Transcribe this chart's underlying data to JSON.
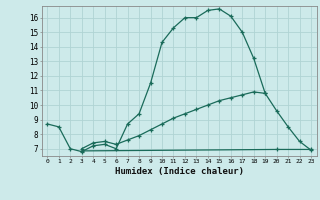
{
  "xlabel": "Humidex (Indice chaleur)",
  "background_color": "#cdeaea",
  "grid_color": "#b0d4d4",
  "line_color": "#1a6b5a",
  "xlim": [
    -0.5,
    23.5
  ],
  "ylim": [
    6.5,
    16.8
  ],
  "yticks": [
    7,
    8,
    9,
    10,
    11,
    12,
    13,
    14,
    15,
    16
  ],
  "xticks": [
    0,
    1,
    2,
    3,
    4,
    5,
    6,
    7,
    8,
    9,
    10,
    11,
    12,
    13,
    14,
    15,
    16,
    17,
    18,
    19,
    20,
    21,
    22,
    23
  ],
  "curve1_x": [
    0,
    1,
    2,
    3,
    4,
    5,
    6,
    7,
    8,
    9,
    10,
    11,
    12,
    13,
    14,
    15,
    16,
    17,
    18,
    19,
    20,
    21,
    22,
    23
  ],
  "curve1_y": [
    8.7,
    8.5,
    7.0,
    6.8,
    7.2,
    7.3,
    7.0,
    8.7,
    9.4,
    11.5,
    14.3,
    15.3,
    16.0,
    16.0,
    16.5,
    16.6,
    16.1,
    15.0,
    13.2,
    10.8,
    9.6,
    8.5,
    7.5,
    6.9
  ],
  "curve2_x": [
    3,
    4,
    5,
    6,
    7,
    8,
    9,
    10,
    11,
    12,
    13,
    14,
    15,
    16,
    17,
    18,
    19
  ],
  "curve2_y": [
    7.0,
    7.4,
    7.5,
    7.3,
    7.6,
    7.9,
    8.3,
    8.7,
    9.1,
    9.4,
    9.7,
    10.0,
    10.3,
    10.5,
    10.7,
    10.9,
    10.8
  ],
  "curve3_x": [
    3,
    20,
    23
  ],
  "curve3_y": [
    6.85,
    6.95,
    6.95
  ]
}
